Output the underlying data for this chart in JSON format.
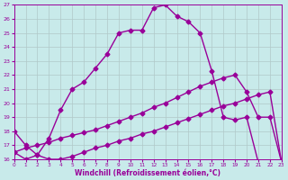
{
  "xlabel": "Windchill (Refroidissement éolien,°C)",
  "background_color": "#c8eaea",
  "grid_color": "#b0c8c8",
  "line_color": "#990099",
  "xlim": [
    0,
    23
  ],
  "ylim": [
    16,
    27
  ],
  "xticks": [
    0,
    1,
    2,
    3,
    4,
    5,
    6,
    7,
    8,
    9,
    10,
    11,
    12,
    13,
    14,
    15,
    16,
    17,
    18,
    19,
    20,
    21,
    22,
    23
  ],
  "yticks": [
    16,
    17,
    18,
    19,
    20,
    21,
    22,
    23,
    24,
    25,
    26,
    27
  ],
  "line1_x": [
    0,
    1,
    2,
    3,
    4,
    5,
    6,
    7,
    8,
    9,
    10,
    11,
    12,
    13,
    14,
    15,
    16,
    17,
    18,
    19,
    20,
    21,
    22,
    23
  ],
  "line1_y": [
    18.0,
    17.0,
    16.3,
    17.5,
    19.5,
    21.0,
    21.5,
    22.5,
    23.5,
    25.0,
    25.2,
    25.2,
    26.8,
    27.0,
    26.2,
    25.8,
    25.0,
    22.3,
    19.0,
    18.8,
    19.0,
    15.8,
    15.8,
    15.8
  ],
  "line2_x": [
    0,
    1,
    2,
    3,
    4,
    5,
    6,
    7,
    8,
    9,
    10,
    11,
    12,
    13,
    14,
    15,
    16,
    17,
    18,
    19,
    20,
    21,
    22,
    23
  ],
  "line2_y": [
    16.5,
    16.8,
    17.0,
    17.2,
    17.5,
    17.7,
    17.9,
    18.1,
    18.4,
    18.7,
    19.0,
    19.3,
    19.7,
    20.0,
    20.4,
    20.8,
    21.2,
    21.5,
    21.8,
    22.0,
    20.8,
    19.0,
    19.0,
    15.8
  ],
  "line3_x": [
    0,
    1,
    2,
    3,
    4,
    5,
    6,
    7,
    8,
    9,
    10,
    11,
    12,
    13,
    14,
    15,
    16,
    17,
    18,
    19,
    20,
    21,
    22,
    23
  ],
  "line3_y": [
    16.5,
    16.0,
    16.3,
    16.0,
    16.0,
    16.2,
    16.5,
    16.8,
    17.0,
    17.3,
    17.5,
    17.8,
    18.0,
    18.3,
    18.6,
    18.9,
    19.2,
    19.5,
    19.8,
    20.0,
    20.3,
    20.6,
    20.8,
    15.8
  ],
  "marker": "D",
  "markersize": 2.5,
  "linewidth": 1.0
}
